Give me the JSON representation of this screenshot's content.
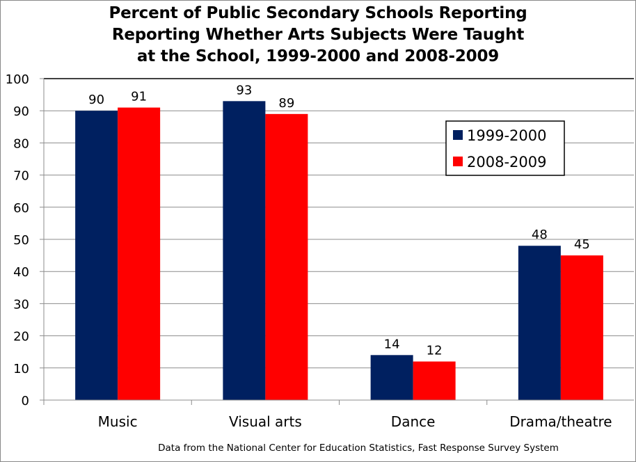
{
  "chart_data": {
    "type": "bar",
    "title_lines": [
      "Percent of Public Secondary Schools Reporting",
      "Reporting Whether Arts Subjects Were Taught",
      "at the School, 1999-2000 and 2008-2009"
    ],
    "categories": [
      "Music",
      "Visual arts",
      "Dance",
      "Drama/theatre"
    ],
    "series": [
      {
        "name": "1999-2000",
        "color": "#002060",
        "values": [
          90,
          93,
          14,
          48
        ]
      },
      {
        "name": "2008-2009",
        "color": "#FF0000",
        "values": [
          91,
          89,
          12,
          45
        ]
      }
    ],
    "ylim": [
      0,
      100
    ],
    "yticks": [
      0,
      10,
      20,
      30,
      40,
      50,
      60,
      70,
      80,
      90,
      100
    ],
    "xlabel": "",
    "ylabel": "",
    "grid": true,
    "legend_position": "top-right",
    "data_labels": true,
    "source_note": "Data from the National Center for Education Statistics, Fast Response Survey System"
  }
}
